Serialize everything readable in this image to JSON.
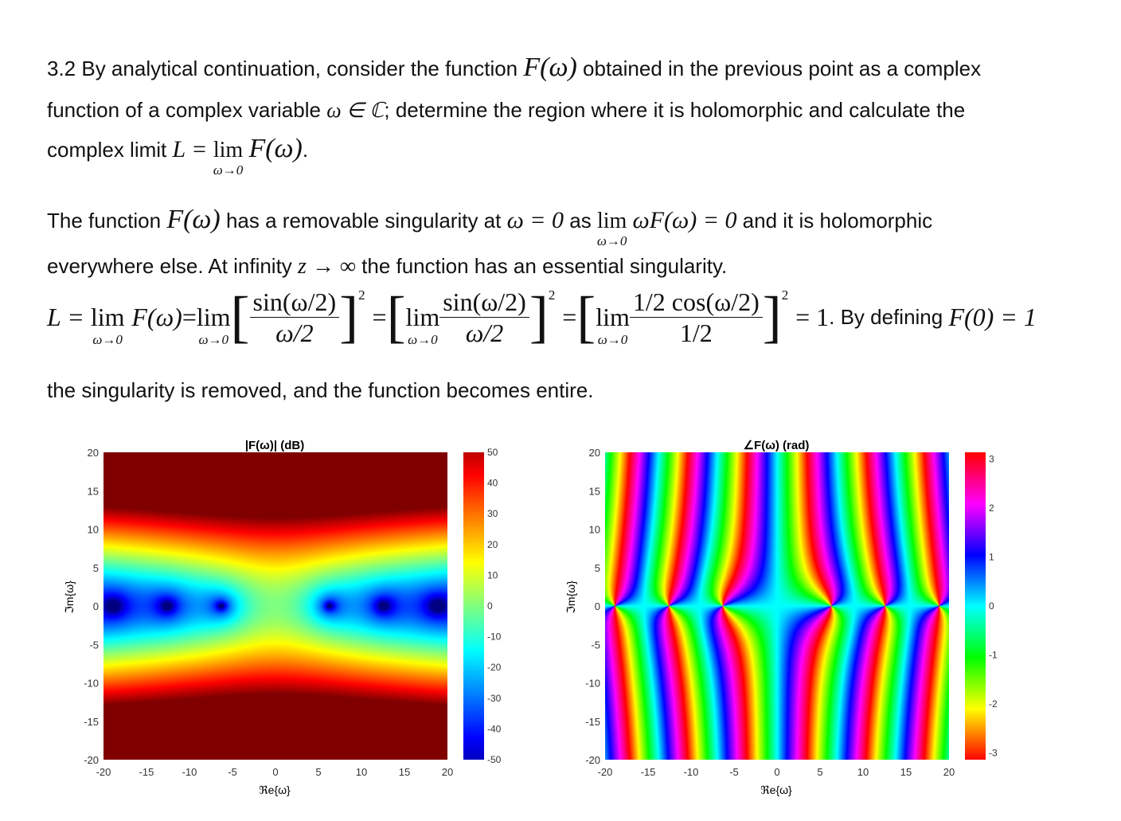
{
  "text": {
    "l1a": "3.2 By analytical continuation, consider the function ",
    "l1b": " obtained in the previous point as a complex",
    "l2a": "function of a complex variable ",
    "l2b": "; determine the region where it is holomorphic and calculate the",
    "l3a": "complex limit ",
    "l4a": "The function ",
    "l4b": " has a removable singularity at ",
    "l4c": " as ",
    "l4d": " and it is holomorphic",
    "l5a": "everywhere else. At infinity ",
    "l5b": " the function has an essential singularity.",
    "l6a": ". By defining ",
    "l7": "the singularity is removed, and the function becomes entire."
  },
  "math": {
    "F_omega": "F(ω)",
    "omega_in_C": "ω ∈ ℂ",
    "L_eq": "L = ",
    "lim": "lim",
    "lim_sub": "ω→0",
    "omega_eq_0": "ω = 0",
    "omega_F": "ωF(ω) = 0",
    "z_inf": "z → ∞",
    "sin_num": "sin(ω/2)",
    "den_omega2": "ω/2",
    "cos_num": "1/2 cos(ω/2)",
    "den_half": "1/2",
    "eq_one": "= 1",
    "F0": "F(0) = 1",
    "exp2": "2"
  },
  "figures": [
    {
      "title": "|F(ω)| (dB)",
      "xlabel": "ℜe{ω}",
      "ylabel": "ℑm{ω}",
      "xticks": [
        "-20",
        "-15",
        "-10",
        "-5",
        "0",
        "5",
        "10",
        "15",
        "20"
      ],
      "yticks": [
        "20",
        "15",
        "10",
        "5",
        "0",
        "-5",
        "-10",
        "-15",
        "-20"
      ],
      "colorbar_ticks": [
        "50",
        "40",
        "30",
        "20",
        "10",
        "0",
        "-10",
        "-20",
        "-30",
        "-40",
        "-50"
      ],
      "colormap": "jet",
      "clim": [
        -50,
        50
      ]
    },
    {
      "title": "∠F(ω) (rad)",
      "xlabel": "ℜe{ω}",
      "ylabel": "ℑm{ω}",
      "xticks": [
        "-20",
        "-15",
        "-10",
        "-5",
        "0",
        "5",
        "10",
        "15",
        "20"
      ],
      "yticks": [
        "20",
        "15",
        "10",
        "5",
        "0",
        "-5",
        "-10",
        "-15",
        "-20"
      ],
      "colorbar_ticks": [
        "3",
        "2",
        "1",
        "0",
        "-1",
        "-2",
        "-3"
      ],
      "colormap": "hsv",
      "clim": [
        -3.14159,
        3.14159
      ]
    }
  ],
  "chart_data": [
    {
      "type": "heatmap",
      "title": "|F(ω)| (dB)",
      "xlabel": "ℜe{ω}",
      "ylabel": "ℑm{ω}",
      "xlim": [
        -20,
        20
      ],
      "ylim": [
        -20,
        20
      ],
      "clim": [
        -50,
        50
      ],
      "colormap": "jet",
      "function": "20*log10(|(sin(ω/2)/(ω/2))^2|)",
      "zeros_on_real_axis": [
        -18.85,
        -12.57,
        -6.28,
        6.28,
        12.57,
        18.85
      ]
    },
    {
      "type": "heatmap",
      "title": "∠F(ω) (rad)",
      "xlabel": "ℜe{ω}",
      "ylabel": "ℑm{ω}",
      "xlim": [
        -20,
        20
      ],
      "ylim": [
        -20,
        20
      ],
      "clim": [
        -3.14159,
        3.14159
      ],
      "colormap": "hsv",
      "function": "arg((sin(ω/2)/(ω/2))^2)"
    }
  ]
}
